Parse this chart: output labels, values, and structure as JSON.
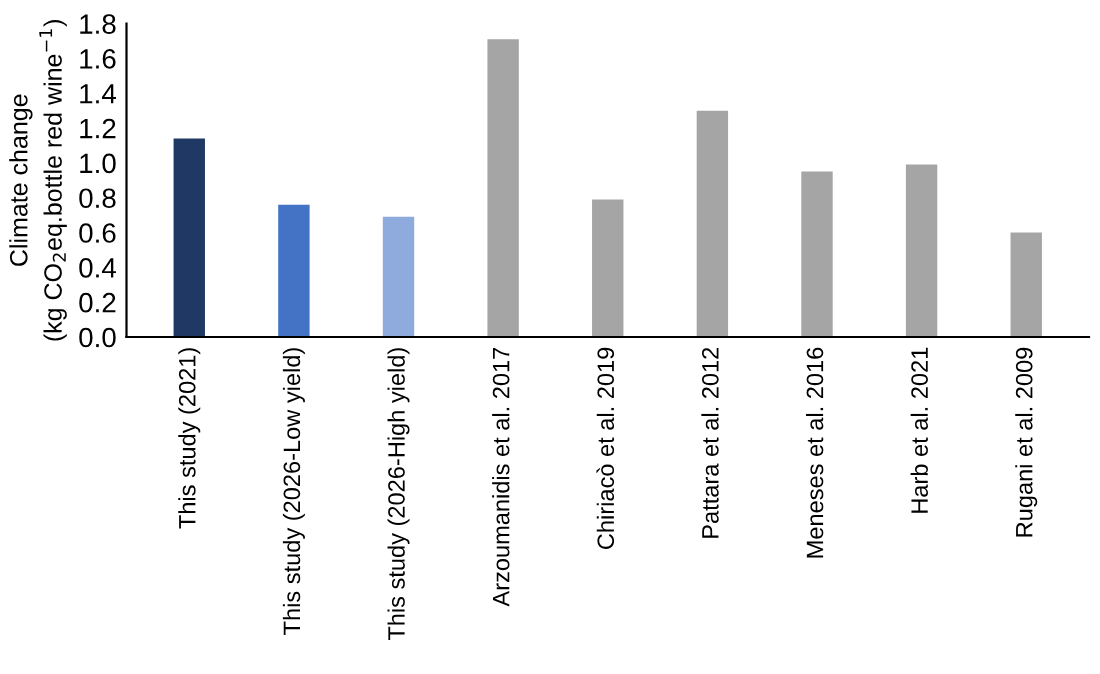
{
  "chart_data": {
    "type": "bar",
    "ylabel": "Climate change\n(kg CO$_{2}$eq.bottle red wine$^{−1}$)",
    "categories": [
      "This study (2021)",
      "This study (2026-Low yield)",
      "This study (2026-High yield)",
      "Arzoumanidis et al. 2017",
      "Chiriacò et al. 2019",
      "Pattara et al. 2012",
      "Meneses et al. 2016",
      "Harb et al. 2021",
      "Rugani et al. 2009"
    ],
    "values": [
      1.14,
      0.76,
      0.69,
      1.71,
      0.79,
      1.3,
      0.95,
      0.99,
      0.6
    ],
    "colors": [
      "#203864",
      "#4472c4",
      "#8faadc",
      "#a5a5a5",
      "#a5a5a5",
      "#a5a5a5",
      "#a5a5a5",
      "#a5a5a5",
      "#a5a5a5"
    ],
    "ylim": [
      0,
      1.8
    ],
    "yticks": [
      {
        "value": 0,
        "label": "0.0"
      },
      {
        "value": 0.2,
        "label": "0.2"
      },
      {
        "value": 0.4,
        "label": "0.4"
      },
      {
        "value": 0.6,
        "label": "0.6"
      },
      {
        "value": 0.8,
        "label": "0.8"
      },
      {
        "value": 1.0,
        "label": "1.0"
      },
      {
        "value": 1.2,
        "label": "1.2"
      },
      {
        "value": 1.4,
        "label": "1.4"
      },
      {
        "value": 1.6,
        "label": "1.6"
      },
      {
        "value": 1.8,
        "label": "1.8"
      }
    ],
    "grid": false
  }
}
